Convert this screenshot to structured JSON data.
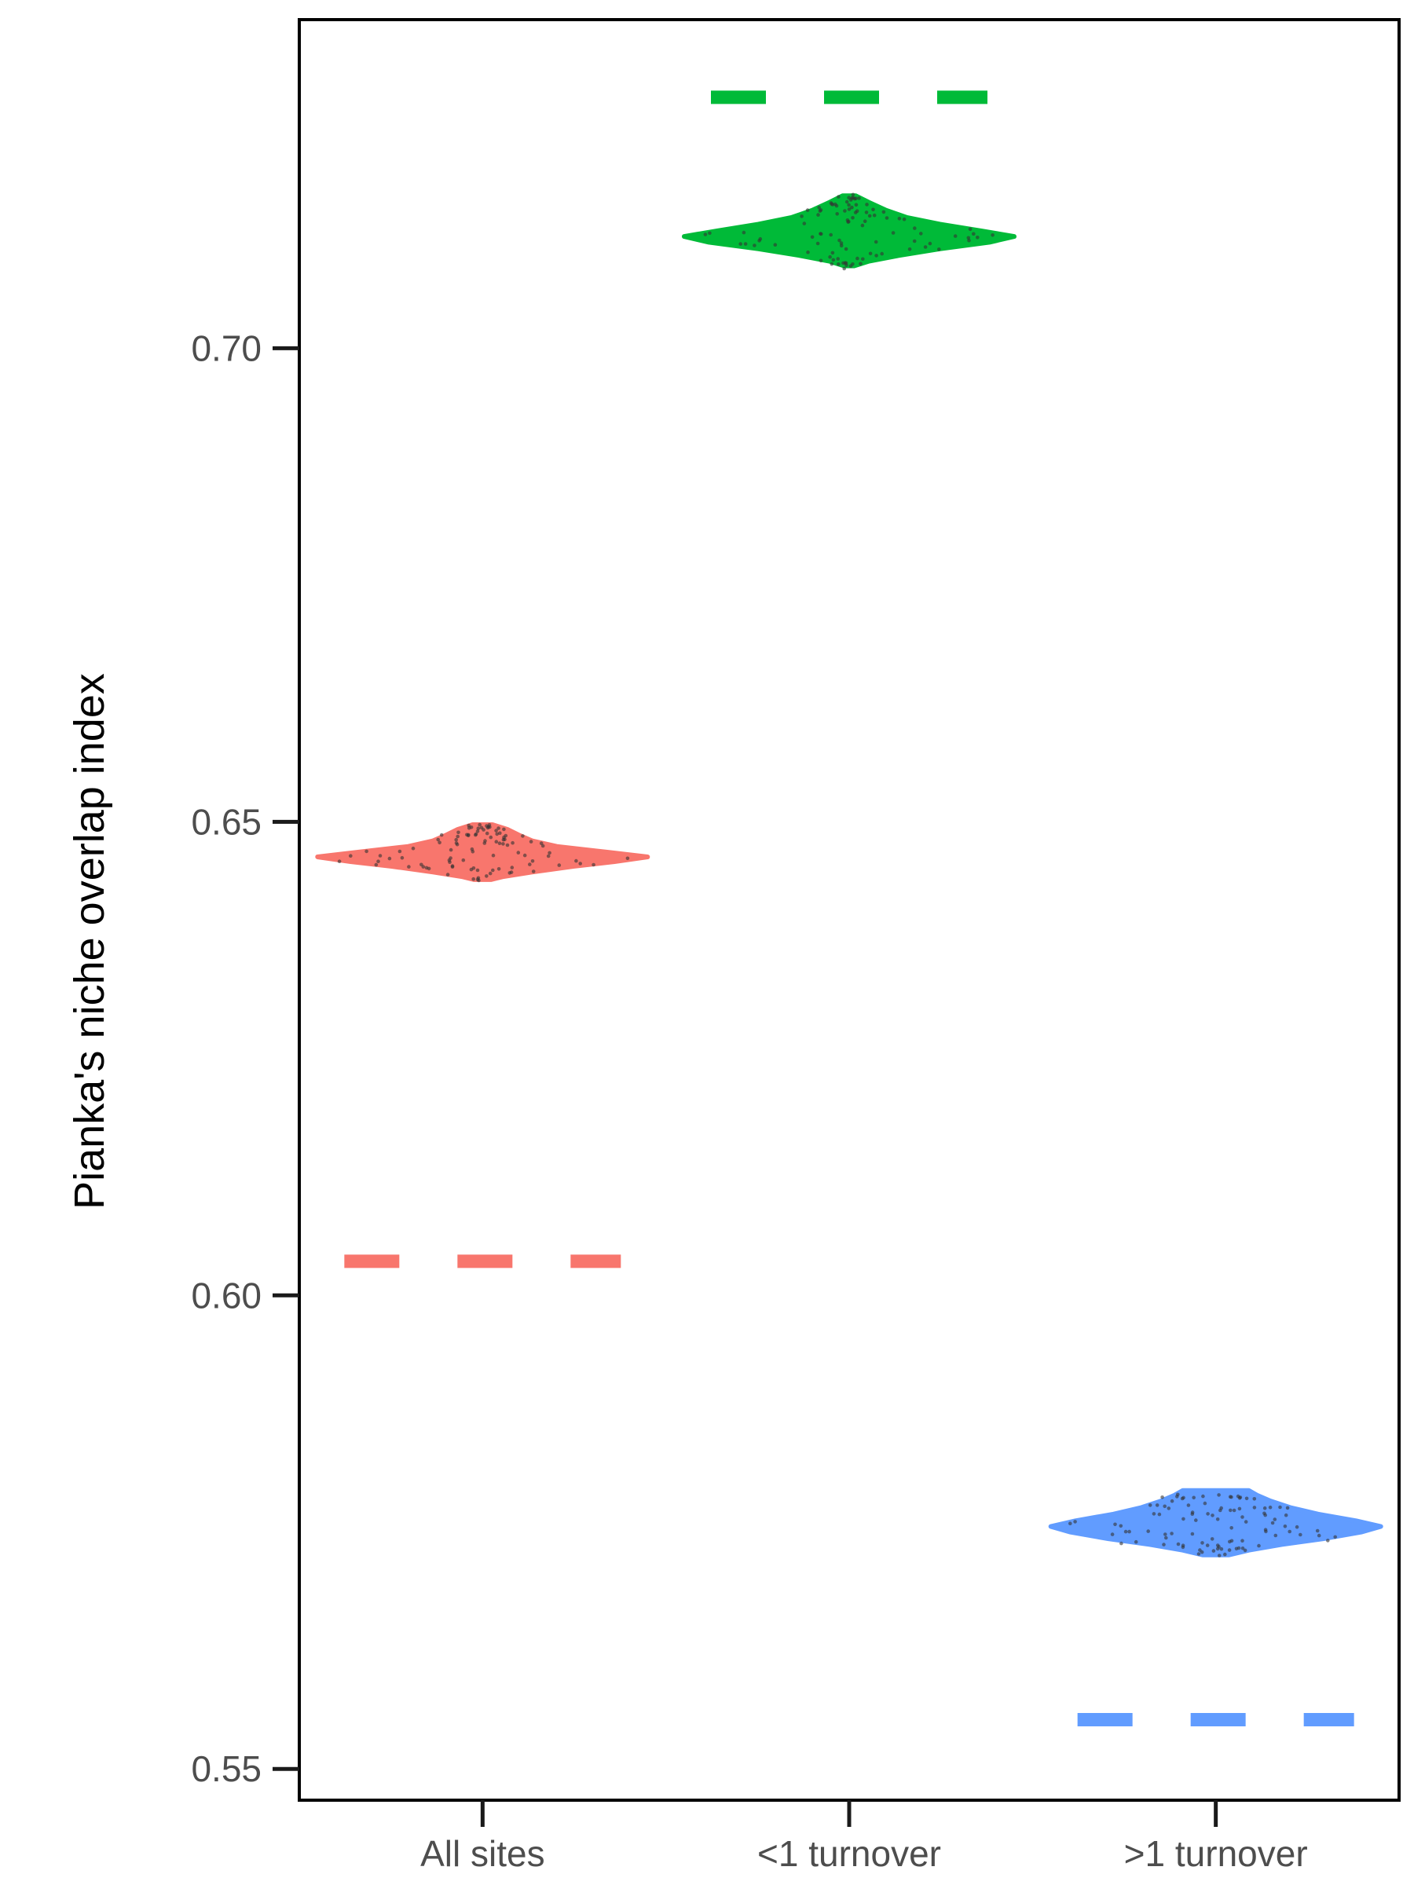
{
  "chart_data": {
    "type": "violin",
    "title": "",
    "xlabel": "",
    "ylabel": "Pianka's niche overlap index",
    "ylim": [
      0.5467,
      0.7347
    ],
    "yticks": [
      0.55,
      0.6,
      0.65,
      0.7
    ],
    "ytick_labels": [
      "0.55",
      "0.60",
      "0.65",
      "0.70"
    ],
    "categories": [
      "All sites",
      "<1 turnover",
      ">1 turnover"
    ],
    "series": [
      {
        "name": "All sites",
        "color": "#F8766D",
        "violin": {
          "min": 0.6439,
          "max": 0.6497,
          "profile": [
            [
              0.6439,
              0.05
            ],
            [
              0.6442,
              0.12
            ],
            [
              0.6447,
              0.3
            ],
            [
              0.6453,
              0.55
            ],
            [
              0.6458,
              0.8
            ],
            [
              0.6463,
              1.0
            ],
            [
              0.6468,
              0.75
            ],
            [
              0.6474,
              0.45
            ],
            [
              0.648,
              0.3
            ],
            [
              0.6486,
              0.22
            ],
            [
              0.6492,
              0.15
            ],
            [
              0.6497,
              0.06
            ]
          ]
        },
        "reference_line": 0.6036
      },
      {
        "name": "<1 turnover",
        "color": "#00BA38",
        "violin": {
          "min": 0.7087,
          "max": 0.7161,
          "profile": [
            [
              0.7087,
              0.03
            ],
            [
              0.7092,
              0.12
            ],
            [
              0.7098,
              0.3
            ],
            [
              0.7105,
              0.55
            ],
            [
              0.7112,
              0.85
            ],
            [
              0.7118,
              1.0
            ],
            [
              0.7124,
              0.8
            ],
            [
              0.7131,
              0.55
            ],
            [
              0.7138,
              0.35
            ],
            [
              0.7146,
              0.22
            ],
            [
              0.7154,
              0.12
            ],
            [
              0.7161,
              0.04
            ]
          ]
        },
        "reference_line": 0.7265
      },
      {
        "name": ">1 turnover",
        "color": "#619CFF",
        "violin": {
          "min": 0.5726,
          "max": 0.5794,
          "profile": [
            [
              0.5726,
              0.08
            ],
            [
              0.5731,
              0.2
            ],
            [
              0.5737,
              0.4
            ],
            [
              0.5743,
              0.65
            ],
            [
              0.575,
              0.88
            ],
            [
              0.5756,
              1.0
            ],
            [
              0.5762,
              0.85
            ],
            [
              0.5769,
              0.62
            ],
            [
              0.5776,
              0.45
            ],
            [
              0.5783,
              0.33
            ],
            [
              0.5789,
              0.25
            ],
            [
              0.5794,
              0.2
            ]
          ]
        },
        "reference_line": 0.5552
      }
    ],
    "legend": "none",
    "grid": false
  }
}
